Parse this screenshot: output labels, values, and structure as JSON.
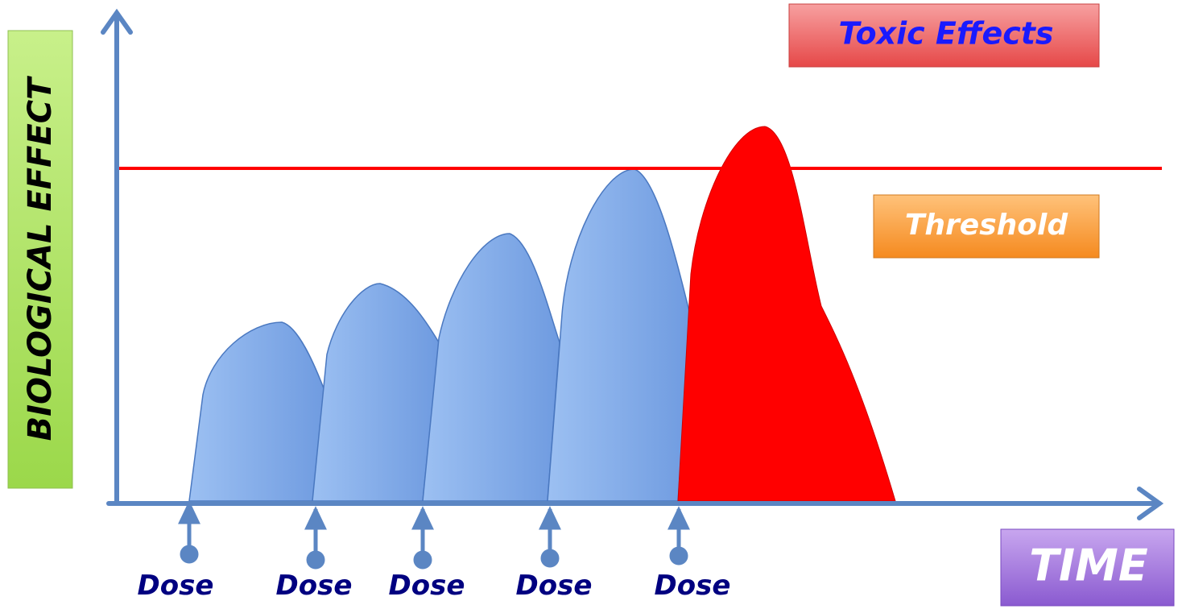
{
  "y_axis_label": "BIOLOGICAL EFFECT",
  "labels": {
    "toxic": "Toxic Effects",
    "threshold": "Threshold",
    "time": "TIME"
  },
  "doses": [
    "Dose",
    "Dose",
    "Dose",
    "Dose",
    "Dose"
  ]
}
